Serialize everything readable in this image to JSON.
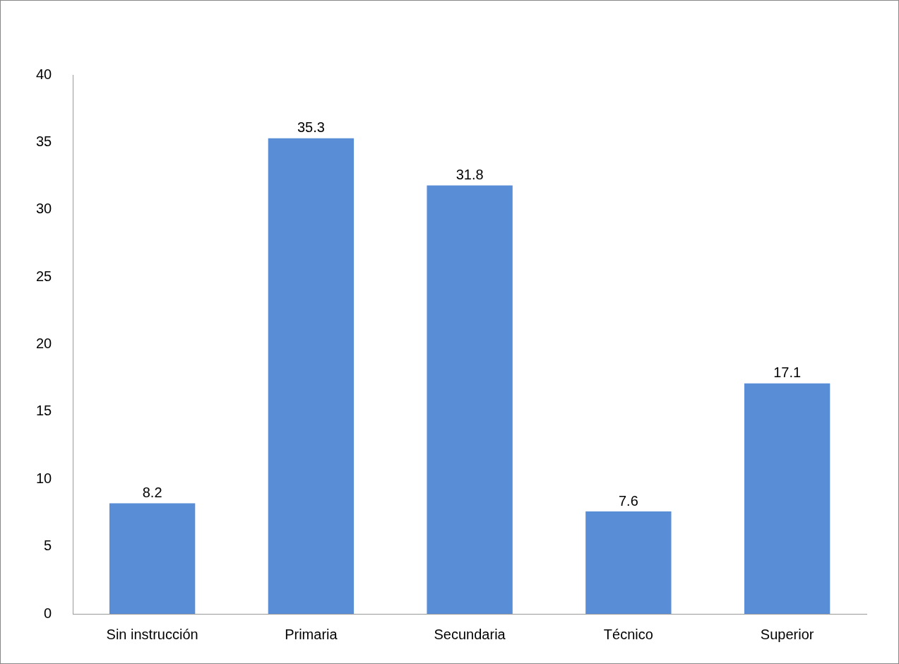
{
  "chart_data": {
    "type": "bar",
    "categories": [
      "Sin instrucción",
      "Primaria",
      "Secundaria",
      "Técnico",
      "Superior"
    ],
    "values": [
      8.2,
      35.3,
      31.8,
      7.6,
      17.1
    ],
    "color": "#598dd5",
    "ylim": [
      0,
      40
    ],
    "yticks": [
      0,
      5,
      10,
      15,
      20,
      25,
      30,
      35,
      40
    ],
    "grid": false,
    "legend": false,
    "data_labels": true
  }
}
